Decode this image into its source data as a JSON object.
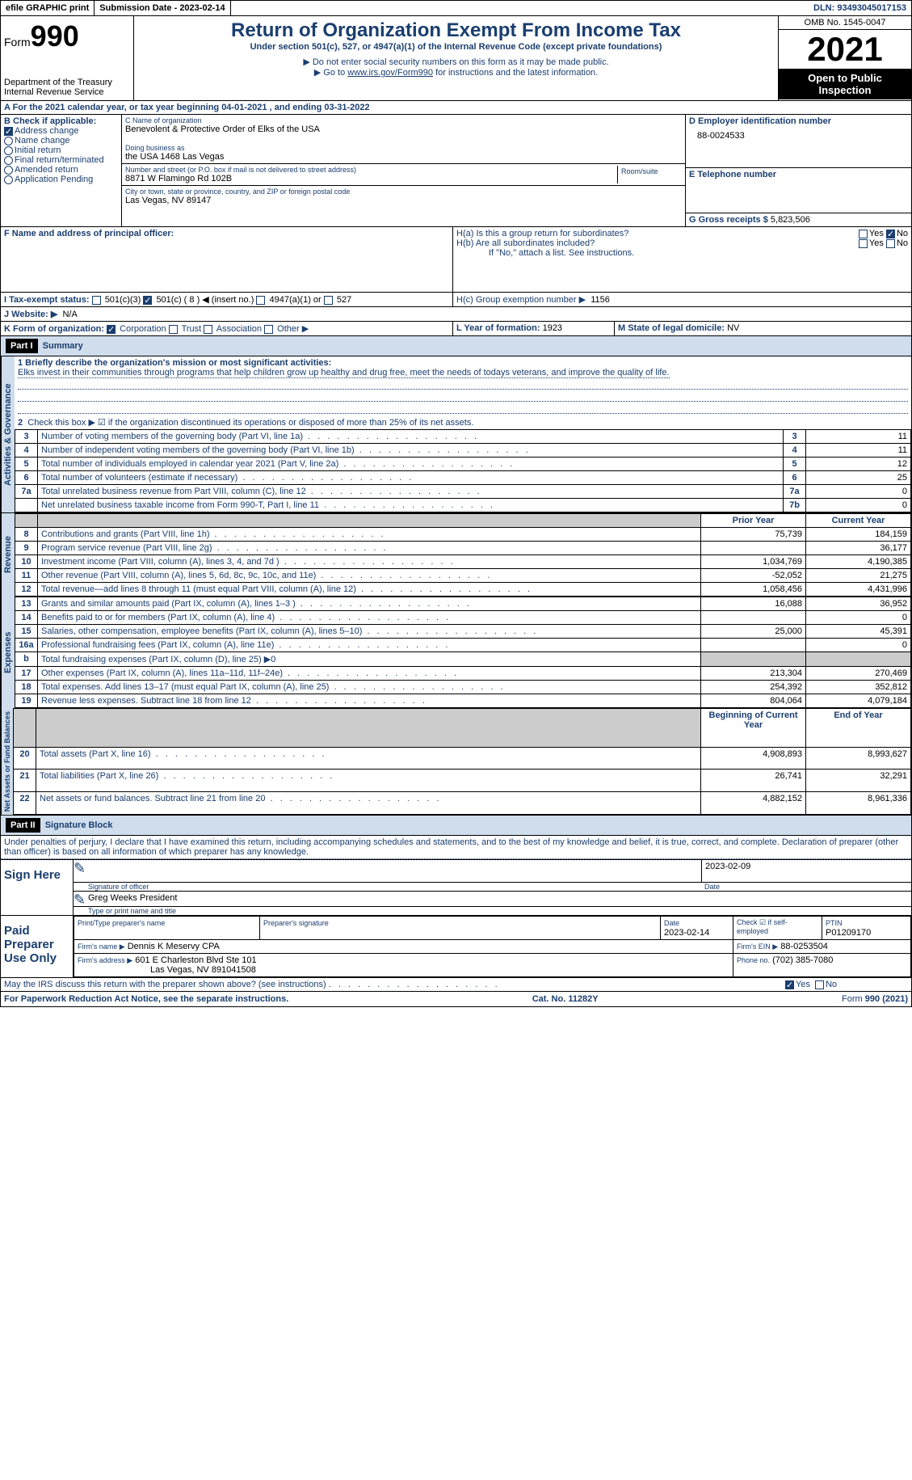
{
  "topbar": {
    "efile_label": "efile GRAPHIC print",
    "sub_label": "Submission Date - 2023-02-14",
    "dln": "DLN: 93493045017153"
  },
  "header": {
    "form_prefix": "Form",
    "form_number": "990",
    "dept": "Department of the Treasury Internal Revenue Service",
    "title": "Return of Organization Exempt From Income Tax",
    "subtitle": "Under section 501(c), 527, or 4947(a)(1) of the Internal Revenue Code (except private foundations)",
    "note1": "Do not enter social security numbers on this form as it may be made public.",
    "note2_prefix": "Go to ",
    "note2_link": "www.irs.gov/Form990",
    "note2_suffix": " for instructions and the latest information.",
    "omb": "OMB No. 1545-0047",
    "year": "2021",
    "otp": "Open to Public Inspection"
  },
  "period": {
    "line_a": "A For the 2021 calendar year, or tax year beginning 04-01-2021   , and ending 03-31-2022"
  },
  "section_b": {
    "label": "B Check if applicable:",
    "items": [
      "Address change",
      "Name change",
      "Initial return",
      "Final return/terminated",
      "Amended return",
      "Application Pending"
    ],
    "checked": [
      true,
      false,
      false,
      false,
      false,
      false
    ]
  },
  "section_c": {
    "label": "C Name of organization",
    "name": "Benevolent & Protective Order of Elks of the USA",
    "dba_label": "Doing business as",
    "dba": "the USA 1468 Las Vegas",
    "addr_label": "Number and street (or P.O. box if mail is not delivered to street address)",
    "room_label": "Room/suite",
    "addr": "8871 W Flamingo Rd 102B",
    "city_label": "City or town, state or province, country, and ZIP or foreign postal code",
    "city": "Las Vegas, NV  89147"
  },
  "section_d": {
    "label": "D Employer identification number",
    "value": "88-0024533"
  },
  "section_e": {
    "label": "E Telephone number",
    "value": ""
  },
  "section_g": {
    "label": "G Gross receipts $",
    "value": "5,823,506"
  },
  "section_f": {
    "label": "F Name and address of principal officer:"
  },
  "section_h": {
    "ha_label": "H(a)  Is this a group return for subordinates?",
    "hb_label": "H(b)  Are all subordinates included?",
    "hb_note": "If \"No,\" attach a list. See instructions.",
    "hc_label": "H(c)  Group exemption number ▶",
    "hc_value": "1156",
    "yes": "Yes",
    "no": "No"
  },
  "section_i": {
    "label": "I  Tax-exempt status:",
    "opt1": "501(c)(3)",
    "opt2": "501(c) ( 8 ) ◀ (insert no.)",
    "opt3": "4947(a)(1) or",
    "opt4": "527"
  },
  "section_j": {
    "label": "J  Website: ▶",
    "value": "N/A"
  },
  "section_k": {
    "label": "K Form of organization:",
    "opts": [
      "Corporation",
      "Trust",
      "Association",
      "Other ▶"
    ]
  },
  "section_l": {
    "label": "L Year of formation:",
    "value": "1923"
  },
  "section_m": {
    "label": "M State of legal domicile:",
    "value": "NV"
  },
  "part1": {
    "header": "Part I",
    "title": "Summary",
    "mission_label": "1  Briefly describe the organization's mission or most significant activities:",
    "mission": "Elks invest in their communities through programs that help children grow up healthy and drug free, meet the needs of todays veterans, and improve the quality of life.",
    "line2": "Check this box ▶ ☑ if the organization discontinued its operations or disposed of more than 25% of its net assets.",
    "col_prior": "Prior Year",
    "col_current": "Current Year",
    "col_boy": "Beginning of Current Year",
    "col_eoy": "End of Year",
    "side_ag": "Activities & Governance",
    "side_rev": "Revenue",
    "side_exp": "Expenses",
    "side_na": "Net Assets or Fund Balances",
    "rows_gov": [
      {
        "n": "3",
        "t": "Number of voting members of the governing body (Part VI, line 1a)",
        "b": "3",
        "v": "11"
      },
      {
        "n": "4",
        "t": "Number of independent voting members of the governing body (Part VI, line 1b)",
        "b": "4",
        "v": "11"
      },
      {
        "n": "5",
        "t": "Total number of individuals employed in calendar year 2021 (Part V, line 2a)",
        "b": "5",
        "v": "12"
      },
      {
        "n": "6",
        "t": "Total number of volunteers (estimate if necessary)",
        "b": "6",
        "v": "25"
      },
      {
        "n": "7a",
        "t": "Total unrelated business revenue from Part VIII, column (C), line 12",
        "b": "7a",
        "v": "0"
      },
      {
        "n": "",
        "t": "Net unrelated business taxable income from Form 990-T, Part I, line 11",
        "b": "7b",
        "v": "0"
      }
    ],
    "rows_rev": [
      {
        "n": "8",
        "t": "Contributions and grants (Part VIII, line 1h)",
        "p": "75,739",
        "c": "184,159"
      },
      {
        "n": "9",
        "t": "Program service revenue (Part VIII, line 2g)",
        "p": "",
        "c": "36,177"
      },
      {
        "n": "10",
        "t": "Investment income (Part VIII, column (A), lines 3, 4, and 7d )",
        "p": "1,034,769",
        "c": "4,190,385"
      },
      {
        "n": "11",
        "t": "Other revenue (Part VIII, column (A), lines 5, 6d, 8c, 9c, 10c, and 11e)",
        "p": "-52,052",
        "c": "21,275"
      },
      {
        "n": "12",
        "t": "Total revenue—add lines 8 through 11 (must equal Part VIII, column (A), line 12)",
        "p": "1,058,456",
        "c": "4,431,996"
      }
    ],
    "rows_exp": [
      {
        "n": "13",
        "t": "Grants and similar amounts paid (Part IX, column (A), lines 1–3 )",
        "p": "16,088",
        "c": "36,952"
      },
      {
        "n": "14",
        "t": "Benefits paid to or for members (Part IX, column (A), line 4)",
        "p": "",
        "c": "0"
      },
      {
        "n": "15",
        "t": "Salaries, other compensation, employee benefits (Part IX, column (A), lines 5–10)",
        "p": "25,000",
        "c": "45,391"
      },
      {
        "n": "16a",
        "t": "Professional fundraising fees (Part IX, column (A), line 11e)",
        "p": "",
        "c": "0"
      },
      {
        "n": "b",
        "t": "Total fundraising expenses (Part IX, column (D), line 25) ▶0",
        "p": "gray",
        "c": "gray"
      },
      {
        "n": "17",
        "t": "Other expenses (Part IX, column (A), lines 11a–11d, 11f–24e)",
        "p": "213,304",
        "c": "270,469"
      },
      {
        "n": "18",
        "t": "Total expenses. Add lines 13–17 (must equal Part IX, column (A), line 25)",
        "p": "254,392",
        "c": "352,812"
      },
      {
        "n": "19",
        "t": "Revenue less expenses. Subtract line 18 from line 12",
        "p": "804,064",
        "c": "4,079,184"
      }
    ],
    "rows_na": [
      {
        "n": "20",
        "t": "Total assets (Part X, line 16)",
        "p": "4,908,893",
        "c": "8,993,627"
      },
      {
        "n": "21",
        "t": "Total liabilities (Part X, line 26)",
        "p": "26,741",
        "c": "32,291"
      },
      {
        "n": "22",
        "t": "Net assets or fund balances. Subtract line 21 from line 20",
        "p": "4,882,152",
        "c": "8,961,336"
      }
    ]
  },
  "part2": {
    "header": "Part II",
    "title": "Signature Block",
    "decl": "Under penalties of perjury, I declare that I have examined this return, including accompanying schedules and statements, and to the best of my knowledge and belief, it is true, correct, and complete. Declaration of preparer (other than officer) is based on all information of which preparer has any knowledge.",
    "sign_here": "Sign Here",
    "sig_officer": "Signature of officer",
    "sig_date": "2023-02-09",
    "date_lbl": "Date",
    "name_title": "Greg Weeks  President",
    "name_lbl": "Type or print name and title",
    "paid": "Paid Preparer Use Only",
    "prep_name_lbl": "Print/Type preparer's name",
    "prep_sig_lbl": "Preparer's signature",
    "prep_date_lbl": "Date",
    "prep_date": "2023-02-14",
    "self_emp": "Check ☑ if self-employed",
    "ptin_lbl": "PTIN",
    "ptin": "P01209170",
    "firm_name_lbl": "Firm's name    ▶",
    "firm_name": "Dennis K Meservy CPA",
    "firm_ein_lbl": "Firm's EIN ▶",
    "firm_ein": "88-0253504",
    "firm_addr_lbl": "Firm's address ▶",
    "firm_addr1": "601 E Charleston Blvd Ste 101",
    "firm_addr2": "Las Vegas, NV  891041508",
    "phone_lbl": "Phone no.",
    "phone": "(702) 385-7080",
    "discuss": "May the IRS discuss this return with the preparer shown above? (see instructions)"
  },
  "footer": {
    "pra": "For Paperwork Reduction Act Notice, see the separate instructions.",
    "cat": "Cat. No. 11282Y",
    "form": "Form 990 (2021)"
  }
}
